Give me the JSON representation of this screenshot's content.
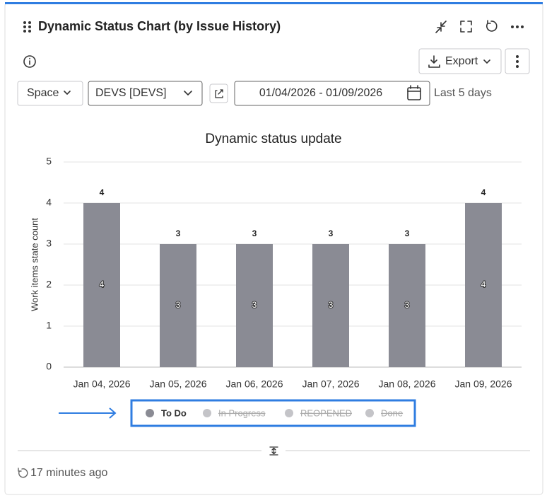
{
  "header": {
    "title": "Dynamic Status Chart (by Issue History)"
  },
  "toolbar": {
    "export": "Export",
    "space": "Space",
    "project": "DEVS [DEVS]",
    "date_range": "01/04/2026 - 01/09/2026",
    "range_label": "Last 5 days"
  },
  "chart_data": {
    "type": "bar",
    "title": "Dynamic status update",
    "y_label": "Work items state count",
    "categories": [
      "Jan 04, 2026",
      "Jan 05, 2026",
      "Jan 06, 2026",
      "Jan 07, 2026",
      "Jan 08, 2026",
      "Jan 09, 2026"
    ],
    "series": [
      {
        "name": "To Do",
        "color": "#8a8b94",
        "values": [
          4,
          3,
          3,
          3,
          3,
          4
        ]
      }
    ],
    "hidden_series": [
      {
        "name": "In Progress",
        "color": "#c4c4c8"
      },
      {
        "name": "REOPENED",
        "color": "#c4c4c8"
      },
      {
        "name": "Done",
        "color": "#c4c4c8"
      }
    ],
    "ylim": [
      0,
      5
    ],
    "yticks": [
      0,
      1,
      2,
      3,
      4,
      5
    ],
    "grid": true
  },
  "footer": {
    "updated": "17 minutes ago"
  }
}
